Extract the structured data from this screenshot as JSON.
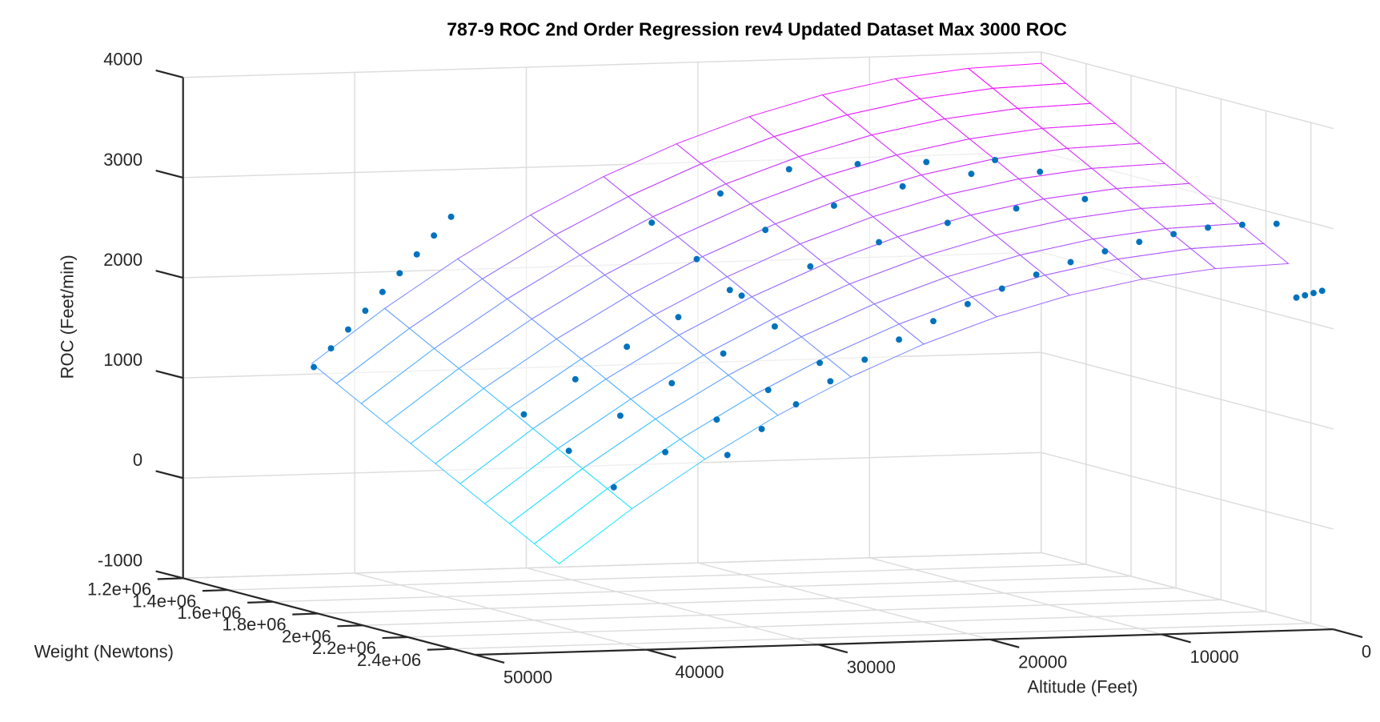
{
  "chart_data": {
    "type": "surface3d",
    "title": "787-9 ROC 2nd Order Regression rev4 Updated Dataset Max 3000 ROC",
    "xlabel": "Altitude (Feet)",
    "ylabel": "Weight (Newtons)",
    "zlabel": "ROC (Feet/min)",
    "xlim": [
      0,
      50000
    ],
    "ylim": [
      1200000,
      2500000
    ],
    "zlim": [
      -1000,
      4000
    ],
    "xticks": [
      0,
      10000,
      20000,
      30000,
      40000,
      50000
    ],
    "yticks": [
      {
        "value": 1200000,
        "label": "1.2e+06"
      },
      {
        "value": 1400000,
        "label": "1.4e+06"
      },
      {
        "value": 1600000,
        "label": "1.6e+06"
      },
      {
        "value": 1800000,
        "label": "1.8e+06"
      },
      {
        "value": 2000000,
        "label": "2e+06"
      },
      {
        "value": 2200000,
        "label": "2.2e+06"
      },
      {
        "value": 2400000,
        "label": "2.4e+06"
      }
    ],
    "zticks": [
      -1000,
      0,
      1000,
      2000,
      3000,
      4000
    ],
    "grid": true,
    "surface": {
      "colormap": "cool",
      "x": [
        0,
        4250,
        8500,
        12750,
        17000,
        21250,
        25500,
        29750,
        34000,
        38250,
        42500
      ],
      "y": [
        1200000,
        1310000,
        1420000,
        1530000,
        1640000,
        1750000,
        1860000,
        1970000,
        2080000,
        2190000,
        2300000
      ],
      "z": [
        [
          3886,
          3751,
          3615,
          3480,
          3345,
          3210,
          3074,
          2939,
          2804,
          2668,
          2533
        ],
        [
          3858,
          3723,
          3587,
          3452,
          3317,
          3182,
          3046,
          2911,
          2776,
          2640,
          2505
        ],
        [
          3775,
          3640,
          3504,
          3369,
          3234,
          3099,
          2963,
          2828,
          2693,
          2557,
          2422
        ],
        [
          3636,
          3501,
          3365,
          3230,
          3095,
          2960,
          2824,
          2689,
          2554,
          2418,
          2283
        ],
        [
          3441,
          3306,
          3170,
          3035,
          2900,
          2765,
          2629,
          2494,
          2359,
          2223,
          2088
        ],
        [
          3191,
          3056,
          2920,
          2785,
          2650,
          2515,
          2379,
          2244,
          2109,
          1973,
          1838
        ],
        [
          2885,
          2750,
          2614,
          2479,
          2344,
          2209,
          2073,
          1938,
          1803,
          1667,
          1532
        ],
        [
          2524,
          2389,
          2253,
          2118,
          1983,
          1848,
          1712,
          1577,
          1442,
          1306,
          1171
        ],
        [
          2107,
          1972,
          1836,
          1701,
          1566,
          1431,
          1295,
          1160,
          1025,
          889,
          754
        ],
        [
          1634,
          1499,
          1363,
          1228,
          1093,
          958,
          822,
          687,
          552,
          416,
          281
        ],
        [
          1106,
          971,
          835,
          700,
          565,
          430,
          294,
          159,
          24,
          -112,
          -247
        ]
      ]
    },
    "scatter": {
      "color": "#0072bd",
      "x": [
        2000,
        4000,
        6000,
        8000,
        10000,
        12000,
        14000,
        16000,
        18000,
        20000,
        22000,
        24000,
        26000,
        28000,
        30000,
        32000,
        34000,
        37000,
        38000,
        39000,
        40000,
        41000,
        42000,
        43000,
        44000,
        45000,
        4000,
        8000,
        12000,
        16000,
        20000,
        24000,
        4000,
        8000,
        12000,
        16000,
        20000,
        24000,
        4000,
        8000,
        12000,
        16000,
        20000,
        24000,
        26000,
        29000,
        32000,
        35000,
        38000,
        26000,
        29000,
        32000,
        35000,
        38000,
        26000,
        29000,
        32000,
        35000,
        38000,
        0,
        500,
        1000,
        1500
      ],
      "y": [
        2400000,
        2400000,
        2400000,
        2400000,
        2400000,
        2400000,
        2400000,
        2400000,
        2400000,
        2400000,
        2400000,
        2400000,
        2400000,
        2400000,
        2400000,
        2400000,
        2400000,
        1400000,
        1400000,
        1400000,
        1400000,
        1400000,
        1400000,
        1400000,
        1400000,
        1400000,
        1300000,
        1300000,
        1300000,
        1300000,
        1300000,
        1300000,
        1500000,
        1500000,
        1500000,
        1500000,
        1500000,
        1500000,
        1700000,
        1700000,
        1700000,
        1700000,
        1700000,
        1700000,
        1800000,
        1800000,
        1800000,
        1800000,
        1800000,
        2000000,
        2000000,
        2000000,
        2000000,
        2000000,
        2200000,
        2200000,
        2200000,
        2200000,
        2200000,
        2450000,
        2450000,
        2450000,
        2450000
      ],
      "z": [
        3000,
        3000,
        2982,
        2928,
        2860,
        2776,
        2678,
        2564,
        2434,
        2290,
        2130,
        1956,
        1766,
        1560,
        1340,
        1104,
        854,
        2660,
        2478,
        2295,
        2112,
        1930,
        1748,
        1565,
        1382,
        1200,
        3000,
        3000,
        3000,
        2969,
        2747,
        2476,
        3000,
        3000,
        2895,
        2723,
        2501,
        2230,
        2845,
        2772,
        2648,
        2476,
        2254,
        1983,
        2108,
        1853,
        1572,
        1263,
        927,
        1862,
        1607,
        1326,
        1017,
        681,
        1616,
        1361,
        1080,
        771,
        435,
        2350,
        2330,
        2310,
        2290
      ]
    }
  }
}
